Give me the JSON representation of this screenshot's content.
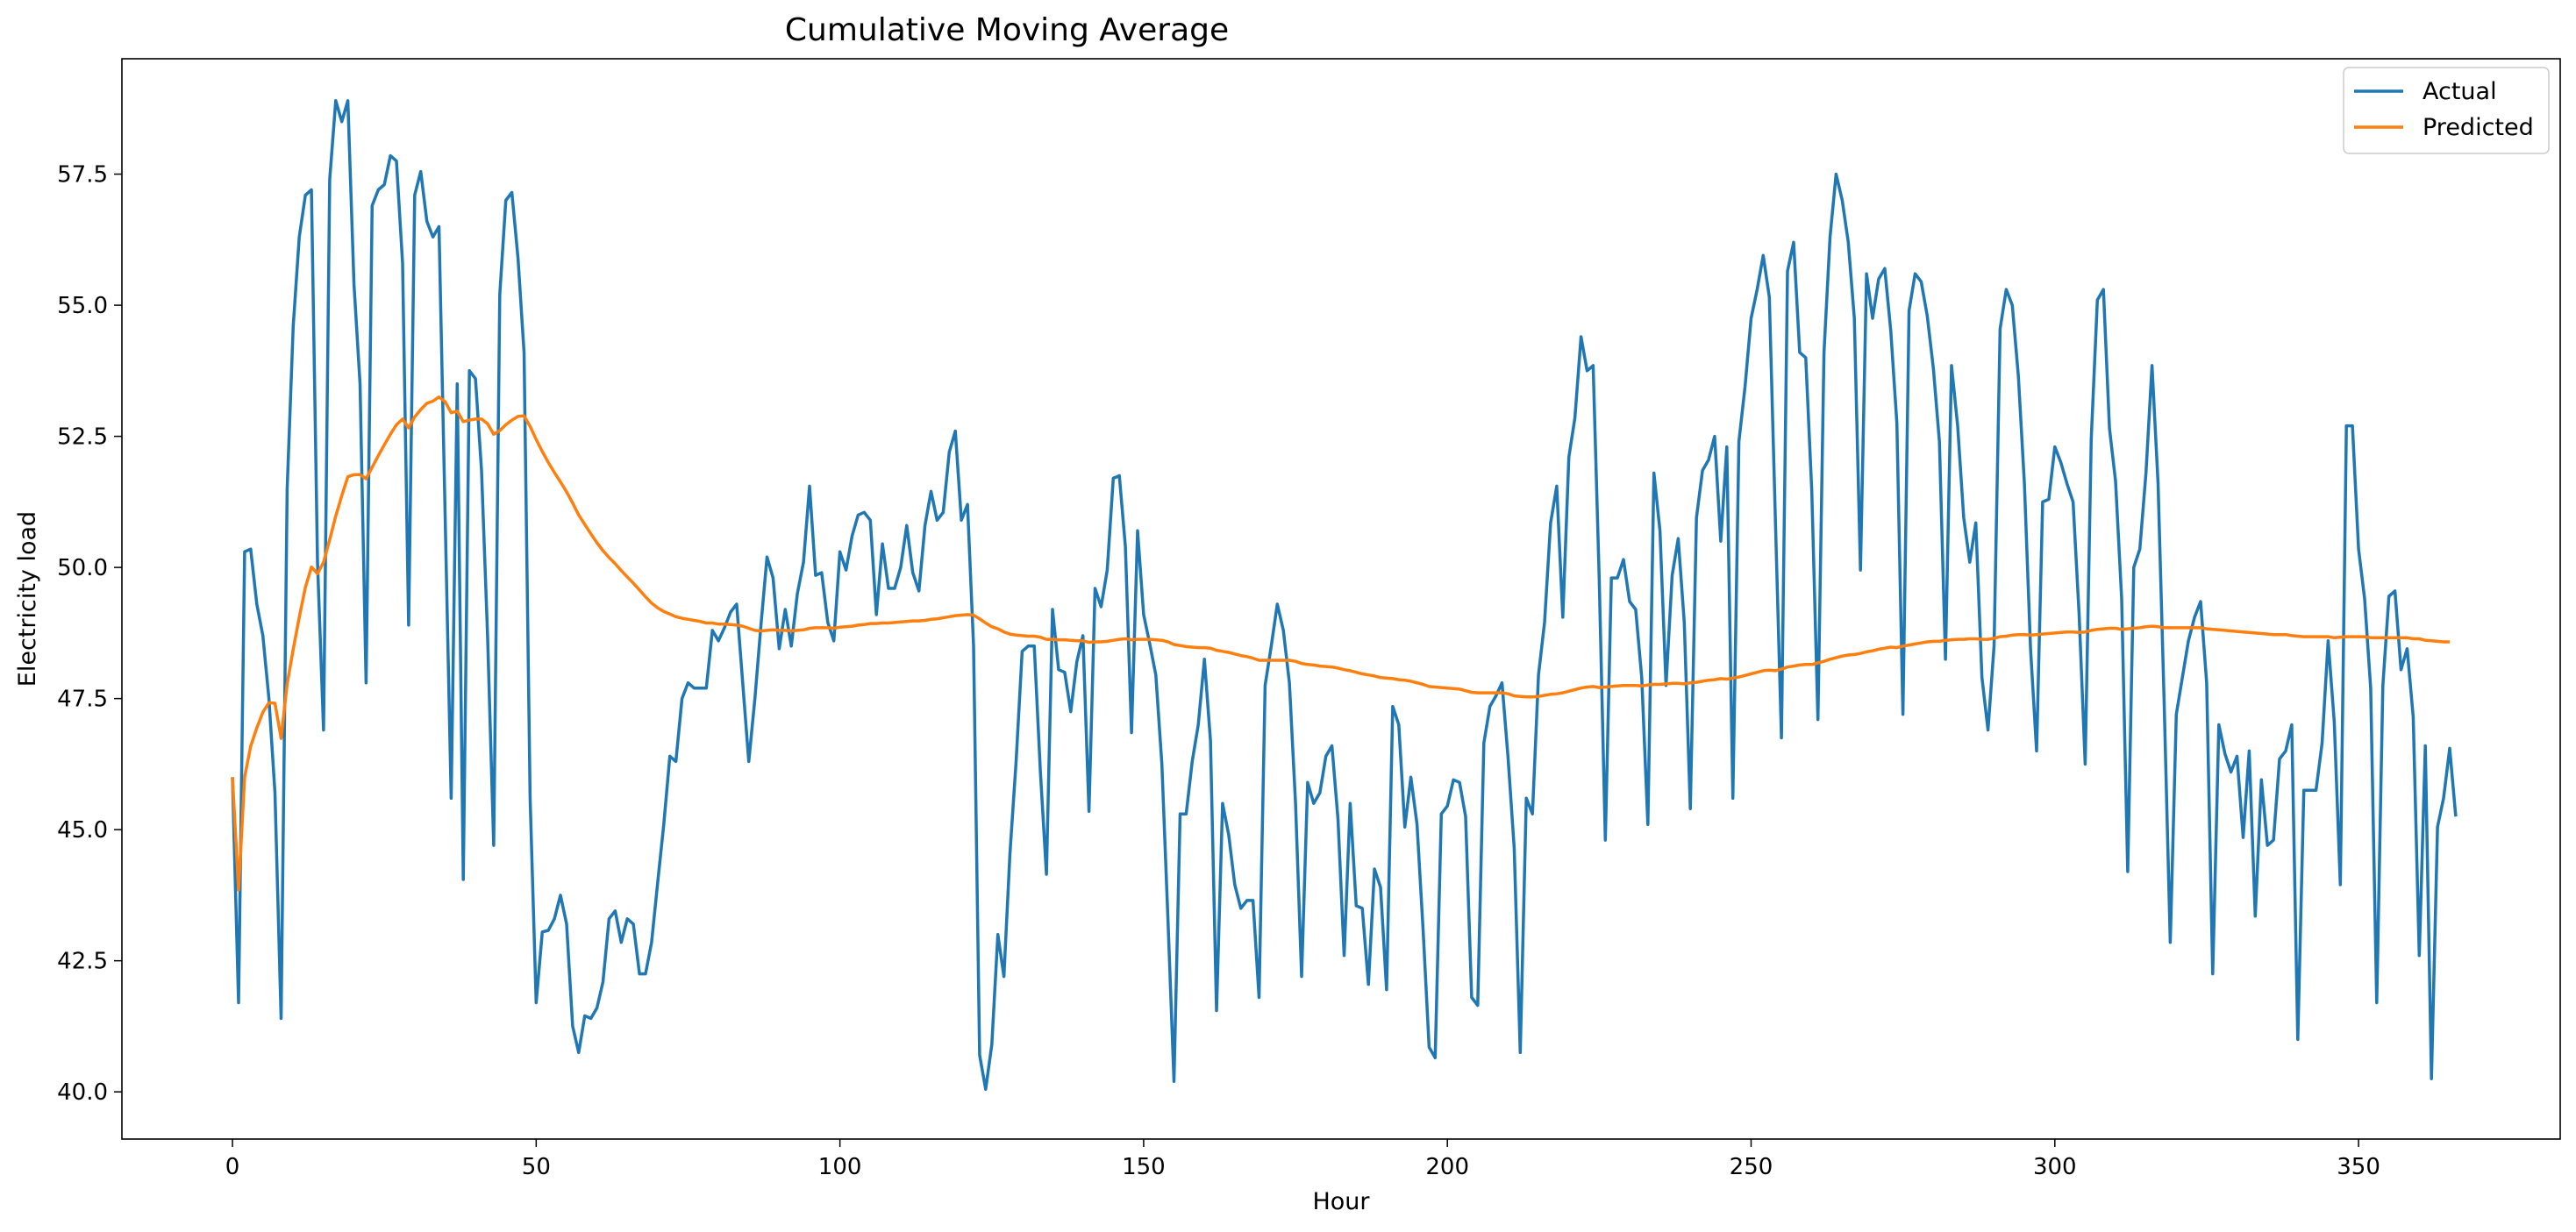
{
  "chart_data": {
    "type": "line",
    "title": "Cumulative Moving Average",
    "xlabel": "Hour",
    "ylabel": "Electricity load",
    "xlim": [
      -18.2,
      383.2
    ],
    "ylim": [
      39.1,
      59.7
    ],
    "xticks": [
      0,
      50,
      100,
      150,
      200,
      250,
      300,
      350
    ],
    "yticks": [
      40.0,
      42.5,
      45.0,
      47.5,
      50.0,
      52.5,
      55.0,
      57.5
    ],
    "xtick_labels": [
      "0",
      "50",
      "100",
      "150",
      "200",
      "250",
      "300",
      "350"
    ],
    "ytick_labels": [
      "40.0",
      "42.5",
      "45.0",
      "47.5",
      "50.0",
      "52.5",
      "55.0",
      "57.5"
    ],
    "grid": false,
    "legend_position": "top-right",
    "series": [
      {
        "name": "Actual",
        "color": "#1f77b4",
        "values": [
          46.0,
          41.7,
          50.3,
          50.35,
          49.3,
          48.7,
          47.5,
          45.7,
          41.4,
          51.5,
          54.6,
          56.3,
          57.1,
          57.2,
          50.1,
          46.9,
          57.4,
          58.9,
          58.5,
          58.9,
          55.4,
          53.5,
          47.8,
          56.9,
          57.2,
          57.3,
          57.85,
          57.75,
          55.8,
          48.9,
          57.1,
          57.55,
          56.6,
          56.3,
          56.5,
          51.0,
          45.6,
          53.5,
          44.05,
          53.75,
          53.6,
          51.85,
          48.7,
          44.7,
          55.2,
          57.0,
          57.15,
          55.9,
          54.1,
          45.6,
          41.7,
          43.05,
          43.08,
          43.3,
          43.75,
          43.2,
          41.25,
          40.75,
          41.45,
          41.4,
          41.6,
          42.1,
          43.3,
          43.45,
          42.85,
          43.3,
          43.2,
          42.25,
          42.25,
          42.85,
          44.0,
          45.1,
          46.4,
          46.3,
          47.5,
          47.8,
          47.7,
          47.7,
          47.7,
          48.8,
          48.6,
          48.85,
          49.15,
          49.3,
          47.8,
          46.3,
          47.5,
          48.9,
          50.2,
          49.8,
          48.45,
          49.2,
          48.5,
          49.5,
          50.1,
          51.55,
          49.85,
          49.9,
          48.95,
          48.6,
          50.3,
          49.95,
          50.6,
          51.0,
          51.05,
          50.9,
          49.1,
          50.45,
          49.6,
          49.6,
          50.0,
          50.8,
          49.9,
          49.55,
          50.8,
          51.45,
          50.9,
          51.05,
          52.2,
          52.6,
          50.9,
          51.2,
          48.5,
          40.7,
          40.05,
          40.9,
          43.0,
          42.2,
          44.55,
          46.3,
          48.4,
          48.5,
          48.5,
          46.1,
          44.15,
          49.2,
          48.05,
          48.0,
          47.25,
          48.2,
          48.7,
          45.35,
          49.6,
          49.25,
          49.95,
          51.7,
          51.75,
          50.4,
          46.85,
          50.7,
          49.1,
          48.55,
          47.95,
          46.25,
          43.3,
          40.2,
          45.3,
          45.3,
          46.3,
          47.0,
          48.25,
          46.7,
          41.55,
          45.5,
          44.9,
          43.95,
          43.5,
          43.65,
          43.65,
          41.8,
          47.75,
          48.5,
          49.3,
          48.8,
          47.8,
          45.5,
          42.2,
          45.9,
          45.5,
          45.7,
          46.4,
          46.6,
          45.2,
          42.6,
          45.5,
          43.55,
          43.5,
          42.05,
          44.25,
          43.9,
          41.95,
          47.35,
          47.0,
          45.05,
          46.0,
          45.1,
          43.1,
          40.85,
          40.65,
          45.3,
          45.45,
          45.95,
          45.9,
          45.25,
          41.8,
          41.65,
          46.65,
          47.35,
          47.55,
          47.8,
          46.35,
          44.65,
          40.75,
          45.6,
          45.3,
          47.95,
          48.95,
          50.85,
          51.55,
          49.05,
          52.1,
          52.85,
          54.4,
          53.75,
          53.85,
          49.8,
          44.8,
          49.8,
          49.8,
          50.15,
          49.35,
          49.2,
          47.9,
          45.1,
          51.8,
          50.7,
          47.75,
          49.85,
          50.55,
          48.95,
          45.4,
          50.95,
          51.85,
          52.05,
          52.5,
          50.5,
          52.3,
          45.6,
          52.4,
          53.45,
          54.75,
          55.3,
          55.95,
          55.15,
          50.9,
          46.75,
          55.65,
          56.2,
          54.1,
          54.0,
          51.45,
          47.1,
          54.1,
          56.3,
          57.5,
          57.0,
          56.2,
          54.75,
          49.95,
          55.6,
          54.75,
          55.5,
          55.7,
          54.5,
          52.75,
          47.2,
          54.9,
          55.6,
          55.45,
          54.8,
          53.8,
          52.4,
          48.25,
          53.85,
          52.7,
          50.95,
          50.1,
          50.85,
          47.9,
          46.9,
          48.5,
          54.55,
          55.3,
          55.0,
          53.65,
          51.6,
          48.45,
          46.5,
          51.25,
          51.3,
          52.3,
          52.0,
          51.6,
          51.25,
          49.1,
          46.25,
          52.45,
          55.1,
          55.3,
          52.65,
          51.65,
          49.4,
          44.2,
          50.0,
          50.35,
          51.8,
          53.85,
          51.6,
          47.45,
          42.85,
          47.2,
          47.9,
          48.6,
          49.05,
          49.35,
          47.8,
          42.25,
          47.0,
          46.45,
          46.1,
          46.4,
          44.85,
          46.5,
          43.35,
          45.95,
          44.7,
          44.8,
          46.35,
          46.5,
          47.0,
          41.0,
          45.75,
          45.75,
          45.75,
          46.65,
          48.6,
          47.05,
          43.95,
          52.7,
          52.7,
          50.35,
          49.4,
          47.7,
          41.7,
          47.75,
          49.45,
          49.55,
          48.05,
          48.45,
          47.15,
          42.6,
          46.6,
          40.25,
          45.05,
          45.6,
          46.55,
          45.25
        ]
      },
      {
        "name": "Predicted",
        "color": "#ff7f0e",
        "values": [
          46.0,
          43.85,
          46.0,
          46.59,
          46.94,
          47.24,
          47.42,
          47.41,
          46.74,
          47.78,
          48.44,
          49.05,
          49.62,
          50.01,
          49.88,
          50.1,
          50.53,
          50.98,
          51.37,
          51.73,
          51.77,
          51.77,
          51.69,
          51.91,
          52.13,
          52.34,
          52.54,
          52.72,
          52.83,
          52.66,
          52.87,
          53.01,
          53.13,
          53.17,
          53.25,
          53.16,
          52.95,
          52.98,
          52.78,
          52.81,
          52.83,
          52.83,
          52.74,
          52.54,
          52.61,
          52.72,
          52.81,
          52.88,
          52.89,
          52.69,
          52.44,
          52.21,
          52.0,
          51.81,
          51.63,
          51.44,
          51.23,
          51.0,
          50.82,
          50.64,
          50.47,
          50.32,
          50.19,
          50.07,
          49.94,
          49.82,
          49.7,
          49.57,
          49.44,
          49.32,
          49.23,
          49.16,
          49.11,
          49.06,
          49.03,
          49.01,
          48.99,
          48.97,
          48.94,
          48.94,
          48.92,
          48.92,
          48.91,
          48.9,
          48.88,
          48.84,
          48.8,
          48.79,
          48.8,
          48.81,
          48.8,
          48.8,
          48.79,
          48.8,
          48.81,
          48.84,
          48.85,
          48.85,
          48.85,
          48.84,
          48.86,
          48.87,
          48.88,
          48.9,
          48.91,
          48.93,
          48.93,
          48.94,
          48.94,
          48.95,
          48.96,
          48.97,
          48.98,
          48.98,
          48.99,
          49.01,
          49.02,
          49.04,
          49.06,
          49.08,
          49.09,
          49.1,
          49.09,
          49.02,
          48.94,
          48.87,
          48.83,
          48.77,
          48.73,
          48.71,
          48.7,
          48.69,
          48.69,
          48.67,
          48.63,
          48.63,
          48.62,
          48.62,
          48.61,
          48.6,
          48.6,
          48.57,
          48.58,
          48.58,
          48.59,
          48.61,
          48.63,
          48.64,
          48.62,
          48.63,
          48.63,
          48.63,
          48.62,
          48.61,
          48.58,
          48.53,
          48.51,
          48.49,
          48.48,
          48.47,
          48.47,
          48.46,
          48.42,
          48.4,
          48.38,
          48.35,
          48.32,
          48.3,
          48.27,
          48.23,
          48.23,
          48.23,
          48.23,
          48.23,
          48.23,
          48.21,
          48.17,
          48.15,
          48.14,
          48.12,
          48.11,
          48.1,
          48.08,
          48.05,
          48.03,
          48.0,
          47.97,
          47.95,
          47.93,
          47.9,
          47.89,
          47.88,
          47.86,
          47.85,
          47.83,
          47.8,
          47.77,
          47.73,
          47.72,
          47.71,
          47.7,
          47.69,
          47.68,
          47.65,
          47.62,
          47.61,
          47.61,
          47.61,
          47.61,
          47.61,
          47.59,
          47.55,
          47.54,
          47.53,
          47.53,
          47.54,
          47.56,
          47.58,
          47.59,
          47.61,
          47.64,
          47.67,
          47.7,
          47.72,
          47.73,
          47.71,
          47.72,
          47.73,
          47.74,
          47.75,
          47.75,
          47.75,
          47.74,
          47.76,
          47.77,
          47.77,
          47.78,
          47.79,
          47.79,
          47.78,
          47.8,
          47.81,
          47.83,
          47.85,
          47.86,
          47.88,
          47.87,
          47.89,
          47.91,
          47.94,
          47.97,
          48.0,
          48.03,
          48.04,
          48.03,
          48.06,
          48.1,
          48.12,
          48.14,
          48.15,
          48.15,
          48.18,
          48.21,
          48.25,
          48.28,
          48.31,
          48.33,
          48.34,
          48.36,
          48.39,
          48.41,
          48.44,
          48.46,
          48.48,
          48.47,
          48.5,
          48.52,
          48.54,
          48.56,
          48.58,
          48.59,
          48.59,
          48.61,
          48.62,
          48.63,
          48.63,
          48.64,
          48.64,
          48.63,
          48.63,
          48.65,
          48.68,
          48.69,
          48.71,
          48.72,
          48.72,
          48.71,
          48.72,
          48.73,
          48.74,
          48.75,
          48.76,
          48.77,
          48.77,
          48.76,
          48.77,
          48.8,
          48.82,
          48.83,
          48.84,
          48.84,
          48.82,
          48.83,
          48.84,
          48.85,
          48.87,
          48.88,
          48.87,
          48.85,
          48.85,
          48.85,
          48.85,
          48.85,
          48.85,
          48.85,
          48.83,
          48.82,
          48.81,
          48.8,
          48.79,
          48.78,
          48.77,
          48.76,
          48.75,
          48.74,
          48.73,
          48.72,
          48.72,
          48.72,
          48.7,
          48.69,
          48.68,
          48.68,
          48.68,
          48.68,
          48.68,
          48.66,
          48.67,
          48.68,
          48.68,
          48.68,
          48.68,
          48.66,
          48.66,
          48.66,
          48.66,
          48.66,
          48.66,
          48.66,
          48.64,
          48.64,
          48.61,
          48.6,
          48.59,
          48.58,
          48.58
        ]
      }
    ]
  }
}
